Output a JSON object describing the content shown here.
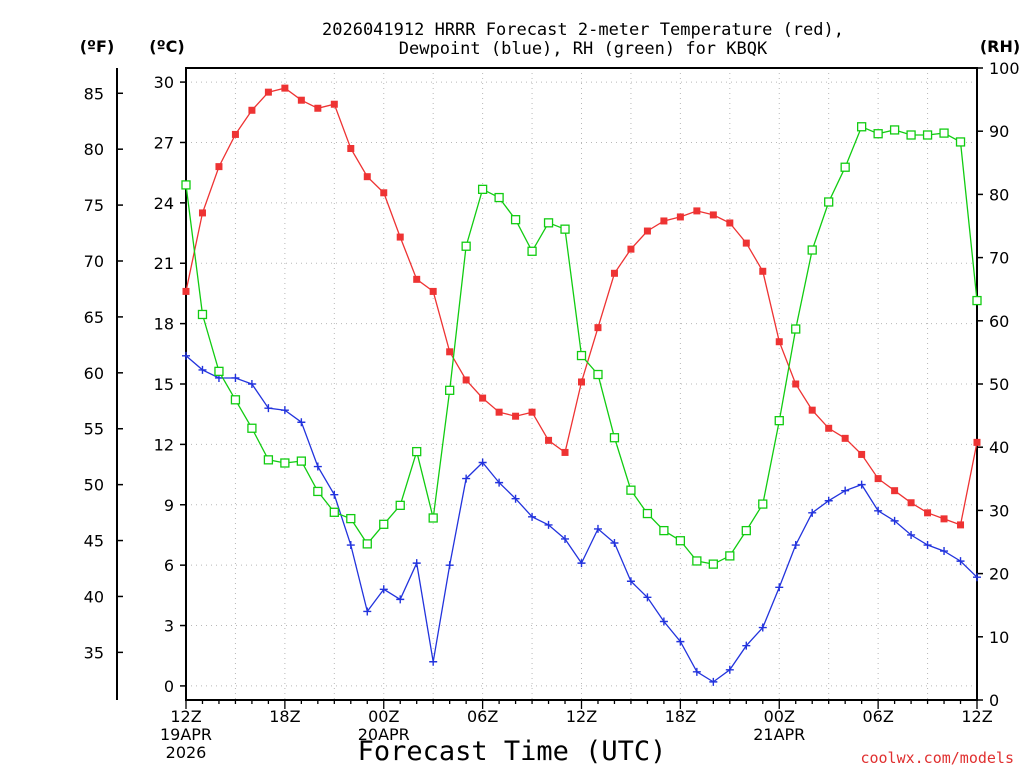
{
  "chart_data": {
    "type": "line",
    "title_line1": "2026041912 HRRR Forecast 2-meter Temperature (red),",
    "title_line2": "Dewpoint (blue), RH (green) for KBQK",
    "xlabel": "Forecast Time (UTC)",
    "credit": "coolwx.com/models",
    "axis_labels": {
      "fahrenheit": "(ºF)",
      "celsius": "(ºC)",
      "rh": "(RH)"
    },
    "c_ticks": [
      "0",
      "3",
      "6",
      "9",
      "12",
      "15",
      "18",
      "21",
      "24",
      "27",
      "30"
    ],
    "f_ticks": [
      "35",
      "40",
      "45",
      "50",
      "55",
      "60",
      "65",
      "70",
      "75",
      "80",
      "85"
    ],
    "rh_ticks": [
      "0",
      "10",
      "20",
      "30",
      "40",
      "50",
      "60",
      "70",
      "80",
      "90",
      "100"
    ],
    "x_ticks": [
      {
        "hour": 0,
        "lines": [
          "12Z",
          "19APR",
          "2026"
        ]
      },
      {
        "hour": 6,
        "lines": [
          "18Z"
        ]
      },
      {
        "hour": 12,
        "lines": [
          "00Z",
          "20APR"
        ]
      },
      {
        "hour": 18,
        "lines": [
          "06Z"
        ]
      },
      {
        "hour": 24,
        "lines": [
          "12Z"
        ]
      },
      {
        "hour": 30,
        "lines": [
          "18Z"
        ]
      },
      {
        "hour": 36,
        "lines": [
          "00Z",
          "21APR"
        ]
      },
      {
        "hour": 42,
        "lines": [
          "06Z"
        ]
      },
      {
        "hour": 48,
        "lines": [
          "12Z"
        ]
      }
    ],
    "xlim": [
      0,
      48
    ],
    "ylim_c": [
      -0.7,
      30.7
    ],
    "ylim_rh": [
      0,
      100
    ],
    "grid": true,
    "series": [
      {
        "name": "Temperature",
        "axis": "c",
        "color": "#ee3333",
        "marker": "filled-square",
        "values": [
          19.6,
          23.5,
          25.8,
          27.4,
          28.6,
          29.5,
          29.7,
          29.1,
          28.7,
          28.9,
          26.7,
          25.3,
          24.5,
          22.3,
          20.2,
          19.6,
          16.6,
          15.2,
          14.3,
          13.6,
          13.4,
          13.6,
          12.2,
          11.6,
          15.1,
          17.8,
          20.5,
          21.7,
          22.6,
          23.1,
          23.3,
          23.6,
          23.4,
          23.0,
          22.0,
          20.6,
          17.1,
          15.0,
          13.7,
          12.8,
          12.3,
          11.5,
          10.3,
          9.7,
          9.1,
          8.6,
          8.3,
          8.0,
          12.1
        ]
      },
      {
        "name": "Dewpoint",
        "axis": "c",
        "color": "#2233dd",
        "marker": "plus",
        "values": [
          16.4,
          15.7,
          15.3,
          15.3,
          15.0,
          13.8,
          13.7,
          13.1,
          10.9,
          9.5,
          7.0,
          3.7,
          4.8,
          4.3,
          6.1,
          1.2,
          6.0,
          10.3,
          11.1,
          10.1,
          9.3,
          8.4,
          8.0,
          7.3,
          6.1,
          7.8,
          7.1,
          5.2,
          4.4,
          3.2,
          2.2,
          0.7,
          0.2,
          0.8,
          2.0,
          2.9,
          4.9,
          7.0,
          8.6,
          9.2,
          9.7,
          10.0,
          8.7,
          8.2,
          7.5,
          7.0,
          6.7,
          6.2,
          5.4
        ]
      },
      {
        "name": "RH",
        "axis": "rh",
        "color": "#11cc11",
        "marker": "open-square",
        "values": [
          81.5,
          61.0,
          52.0,
          47.5,
          43.0,
          38.0,
          37.5,
          37.8,
          33.0,
          29.7,
          28.7,
          24.7,
          27.8,
          30.8,
          39.3,
          28.8,
          49.0,
          71.8,
          80.8,
          79.5,
          76.0,
          71.0,
          75.5,
          74.5,
          54.5,
          51.5,
          41.5,
          33.2,
          29.5,
          26.8,
          25.2,
          22.0,
          21.5,
          22.8,
          26.8,
          31.0,
          44.2,
          58.7,
          71.2,
          78.8,
          84.3,
          90.7,
          89.6,
          90.2,
          89.4,
          89.4,
          89.7,
          88.3,
          63.2
        ]
      }
    ]
  }
}
